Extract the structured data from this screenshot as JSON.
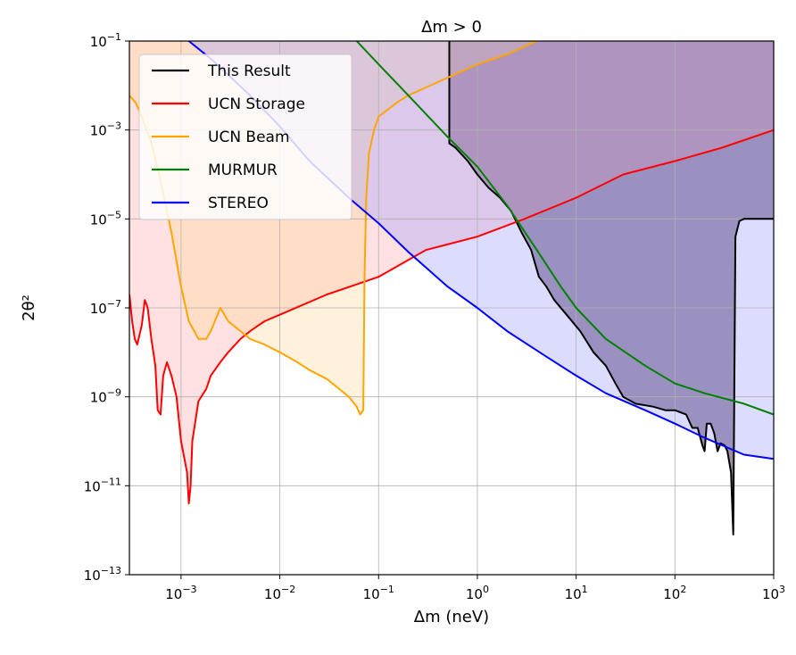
{
  "chart_data": {
    "type": "line",
    "title": "Δm > 0",
    "xlabel": "Δm (neV)",
    "ylabel": "2θ²",
    "xscale": "log",
    "yscale": "log",
    "xlim": [
      0.0003,
      1000
    ],
    "ylim": [
      1e-13,
      0.1
    ],
    "grid": true,
    "legend_position": "top-left",
    "x_ticks": [
      {
        "base": "10",
        "exp": "−3",
        "value": 0.001
      },
      {
        "base": "10",
        "exp": "−2",
        "value": 0.01
      },
      {
        "base": "10",
        "exp": "−1",
        "value": 0.1
      },
      {
        "base": "10",
        "exp": "0",
        "value": 1
      },
      {
        "base": "10",
        "exp": "1",
        "value": 10
      },
      {
        "base": "10",
        "exp": "2",
        "value": 100
      },
      {
        "base": "10",
        "exp": "3",
        "value": 1000
      }
    ],
    "y_ticks": [
      {
        "base": "10",
        "exp": "−13",
        "value": 1e-13
      },
      {
        "base": "10",
        "exp": "−11",
        "value": 1e-11
      },
      {
        "base": "10",
        "exp": "−9",
        "value": 1e-09
      },
      {
        "base": "10",
        "exp": "−7",
        "value": 1e-07
      },
      {
        "base": "10",
        "exp": "−5",
        "value": 1e-05
      },
      {
        "base": "10",
        "exp": "−3",
        "value": 0.001
      },
      {
        "base": "10",
        "exp": "−1",
        "value": 0.1
      }
    ],
    "series": [
      {
        "name": "This Result",
        "color": "#000000",
        "fill": "#4a3050",
        "fill_opacity": 0.55,
        "points": [
          [
            0.52,
            0.1
          ],
          [
            0.52,
            0.0005
          ],
          [
            0.6,
            0.0004
          ],
          [
            0.8,
            0.0002
          ],
          [
            1.0,
            0.0001
          ],
          [
            1.3,
            5e-05
          ],
          [
            1.7,
            3e-05
          ],
          [
            2.2,
            1.5e-05
          ],
          [
            2.8,
            5e-06
          ],
          [
            3.5,
            2e-06
          ],
          [
            4.2,
            5e-07
          ],
          [
            5.0,
            3e-07
          ],
          [
            6.0,
            1.5e-07
          ],
          [
            8,
            7e-08
          ],
          [
            11,
            3e-08
          ],
          [
            15,
            1e-08
          ],
          [
            20,
            5e-09
          ],
          [
            25,
            2e-09
          ],
          [
            30,
            1e-09
          ],
          [
            40,
            7e-10
          ],
          [
            60,
            6e-10
          ],
          [
            80,
            5e-10
          ],
          [
            100,
            5e-10
          ],
          [
            130,
            4e-10
          ],
          [
            150,
            2e-10
          ],
          [
            170,
            2e-10
          ],
          [
            190,
            8e-11
          ],
          [
            200,
            6e-11
          ],
          [
            210,
            2.5e-10
          ],
          [
            230,
            2.5e-10
          ],
          [
            250,
            1.5e-10
          ],
          [
            270,
            6e-11
          ],
          [
            290,
            9e-11
          ],
          [
            320,
            8e-11
          ],
          [
            340,
            6e-11
          ],
          [
            370,
            2e-11
          ],
          [
            390,
            8e-13
          ],
          [
            410,
            4e-06
          ],
          [
            450,
            9e-06
          ],
          [
            500,
            1e-05
          ],
          [
            600,
            1e-05
          ],
          [
            1000,
            1e-05
          ]
        ]
      },
      {
        "name": "UCN Storage",
        "color": "#ff0000",
        "fill": "#ff9a9a",
        "fill_opacity": 0.3,
        "points": [
          [
            0.0003,
            2e-07
          ],
          [
            0.00032,
            5e-08
          ],
          [
            0.00034,
            2e-08
          ],
          [
            0.00036,
            1.5e-08
          ],
          [
            0.0004,
            4e-08
          ],
          [
            0.00043,
            1.5e-07
          ],
          [
            0.00046,
            1e-07
          ],
          [
            0.0005,
            2e-08
          ],
          [
            0.00055,
            5e-09
          ],
          [
            0.00058,
            5e-10
          ],
          [
            0.00062,
            4e-10
          ],
          [
            0.00066,
            3e-09
          ],
          [
            0.00072,
            6e-09
          ],
          [
            0.0008,
            3e-09
          ],
          [
            0.0009,
            1e-09
          ],
          [
            0.001,
            1e-10
          ],
          [
            0.00115,
            2e-11
          ],
          [
            0.0012,
            4e-12
          ],
          [
            0.00125,
            1e-11
          ],
          [
            0.0013,
            1e-10
          ],
          [
            0.0015,
            8e-10
          ],
          [
            0.0018,
            1.5e-09
          ],
          [
            0.002,
            3e-09
          ],
          [
            0.0025,
            6e-09
          ],
          [
            0.003,
            1e-08
          ],
          [
            0.004,
            2e-08
          ],
          [
            0.005,
            3e-08
          ],
          [
            0.007,
            5e-08
          ],
          [
            0.01,
            7e-08
          ],
          [
            0.03,
            2e-07
          ],
          [
            0.1,
            5e-07
          ],
          [
            0.3,
            2e-06
          ],
          [
            1,
            4e-06
          ],
          [
            3,
            1e-05
          ],
          [
            10,
            3e-05
          ],
          [
            30,
            0.0001
          ],
          [
            100,
            0.0002
          ],
          [
            300,
            0.0004
          ],
          [
            1000,
            0.001
          ]
        ]
      },
      {
        "name": "UCN Beam",
        "color": "#ffa500",
        "fill": "#ffd898",
        "fill_opacity": 0.35,
        "points": [
          [
            0.0003,
            0.006
          ],
          [
            0.00035,
            0.004
          ],
          [
            0.0004,
            0.002
          ],
          [
            0.0005,
            0.0005
          ],
          [
            0.0006,
            0.0001
          ],
          [
            0.0008,
            5e-06
          ],
          [
            0.001,
            3e-07
          ],
          [
            0.0012,
            5e-08
          ],
          [
            0.0015,
            2e-08
          ],
          [
            0.0018,
            2e-08
          ],
          [
            0.002,
            3e-08
          ],
          [
            0.0025,
            1e-07
          ],
          [
            0.003,
            5e-08
          ],
          [
            0.004,
            3e-08
          ],
          [
            0.005,
            2e-08
          ],
          [
            0.007,
            1.5e-08
          ],
          [
            0.01,
            1e-08
          ],
          [
            0.015,
            6e-09
          ],
          [
            0.02,
            4e-09
          ],
          [
            0.03,
            2.5e-09
          ],
          [
            0.04,
            1.5e-09
          ],
          [
            0.05,
            1e-09
          ],
          [
            0.06,
            6e-10
          ],
          [
            0.065,
            4e-10
          ],
          [
            0.07,
            5e-10
          ],
          [
            0.072,
            5e-07
          ],
          [
            0.075,
            3e-05
          ],
          [
            0.08,
            0.0003
          ],
          [
            0.09,
            0.001
          ],
          [
            0.1,
            0.002
          ],
          [
            0.15,
            0.004
          ],
          [
            0.2,
            0.006
          ],
          [
            0.3,
            0.009
          ],
          [
            0.5,
            0.015
          ],
          [
            1,
            0.03
          ],
          [
            2,
            0.05
          ],
          [
            4,
            0.1
          ]
        ]
      },
      {
        "name": "MURMUR",
        "color": "#008000",
        "fill": "#008000",
        "fill_opacity": 0.0,
        "points": [
          [
            0.06,
            0.1
          ],
          [
            0.1,
            0.03
          ],
          [
            0.2,
            0.006
          ],
          [
            0.5,
            0.0007
          ],
          [
            1,
            0.00015
          ],
          [
            2,
            2e-05
          ],
          [
            4,
            2e-06
          ],
          [
            7,
            3e-07
          ],
          [
            10,
            1e-07
          ],
          [
            20,
            2e-08
          ],
          [
            50,
            5e-09
          ],
          [
            100,
            2e-09
          ],
          [
            200,
            1.2e-09
          ],
          [
            500,
            7e-10
          ],
          [
            1000,
            4e-10
          ]
        ]
      },
      {
        "name": "STEREO",
        "color": "#0000ff",
        "fill": "#9c9cff",
        "fill_opacity": 0.35,
        "points": [
          [
            0.0012,
            0.1
          ],
          [
            0.002,
            0.04
          ],
          [
            0.005,
            0.006
          ],
          [
            0.01,
            0.0012
          ],
          [
            0.02,
            0.0002
          ],
          [
            0.05,
            3e-05
          ],
          [
            0.1,
            8e-06
          ],
          [
            0.2,
            1.8e-06
          ],
          [
            0.5,
            3e-07
          ],
          [
            1,
            1e-07
          ],
          [
            2,
            3e-08
          ],
          [
            5,
            8e-09
          ],
          [
            10,
            3e-09
          ],
          [
            20,
            1.2e-09
          ],
          [
            50,
            5e-10
          ],
          [
            100,
            2.5e-10
          ],
          [
            200,
            1.2e-10
          ],
          [
            500,
            5e-11
          ],
          [
            1000,
            4e-11
          ]
        ]
      }
    ]
  }
}
